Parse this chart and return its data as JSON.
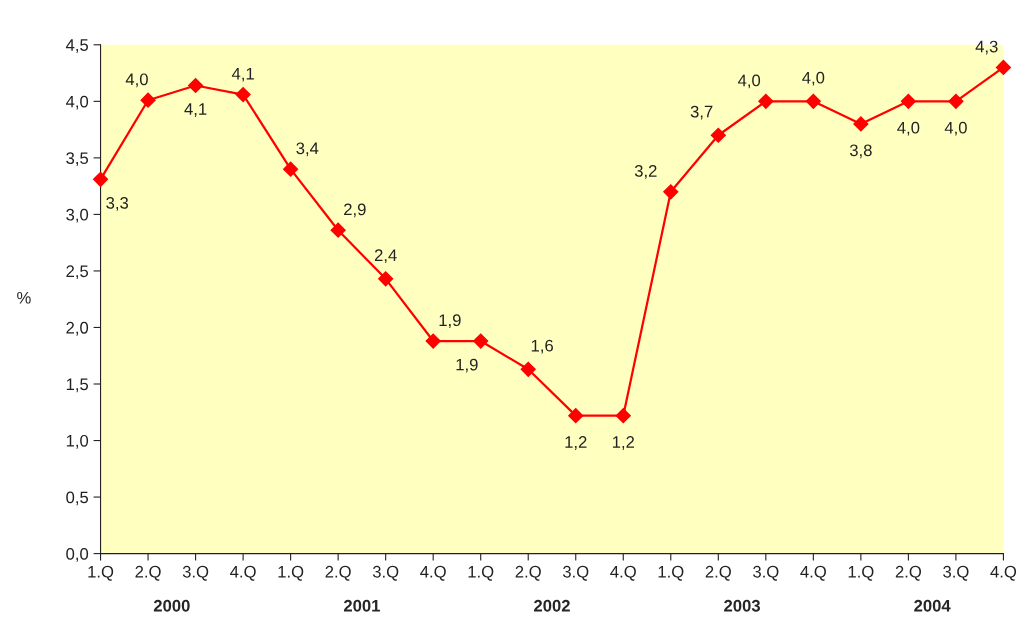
{
  "chart_data": {
    "type": "line",
    "ylabel": "%",
    "categories": [
      "1.Q",
      "2.Q",
      "3.Q",
      "4.Q",
      "1.Q",
      "2.Q",
      "3.Q",
      "4.Q",
      "1.Q",
      "2.Q",
      "3.Q",
      "4.Q",
      "1.Q",
      "2.Q",
      "3.Q",
      "4.Q",
      "1.Q",
      "2.Q",
      "3.Q",
      "4.Q"
    ],
    "series": [
      {
        "color": "#ff0000",
        "values": [
          3.31,
          4.01,
          4.14,
          4.06,
          3.4,
          2.86,
          2.43,
          1.88,
          1.88,
          1.63,
          1.22,
          1.22,
          3.2,
          3.7,
          4.0,
          4.0,
          3.8,
          4.0,
          4.0,
          4.3
        ],
        "value_labels": [
          "3,3",
          "4,0",
          "4,1",
          "4,1",
          "3,4",
          "2,9",
          "2,4",
          "1,9",
          "1,9",
          "1,6",
          "1,2",
          "1,2",
          "3,2",
          "3,7",
          "4,0",
          "4,0",
          "3,8",
          "4,0",
          "4,0",
          "4,3"
        ]
      }
    ],
    "annotations": [
      "2000",
      "2001",
      "2002",
      "2003",
      "2004"
    ],
    "ylim": [
      0,
      4.5
    ],
    "yticks": [
      {
        "value": 0,
        "label": "0,0"
      },
      {
        "value": 0.5,
        "label": "0,5"
      },
      {
        "value": 1,
        "label": "1,0"
      },
      {
        "value": 1.5,
        "label": "1,5"
      },
      {
        "value": 2,
        "label": "2,0"
      },
      {
        "value": 2.5,
        "label": "2,5"
      },
      {
        "value": 3,
        "label": "3,0"
      },
      {
        "value": 3.5,
        "label": "3,5"
      },
      {
        "value": 4,
        "label": "4,0"
      },
      {
        "value": 4.5,
        "label": "4,5"
      }
    ],
    "marker": "diamond",
    "line_style": "solid",
    "grid": false,
    "legend": false
  }
}
